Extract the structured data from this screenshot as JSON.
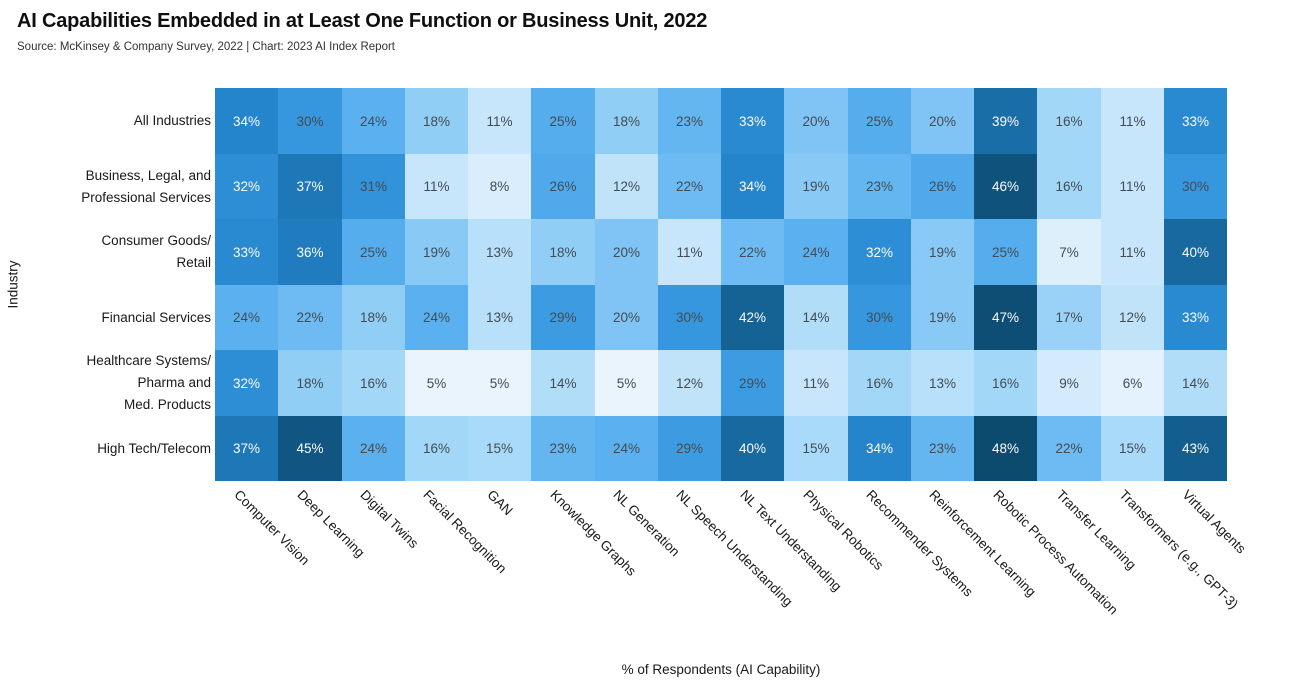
{
  "header": {
    "title": "AI Capabilities Embedded in at Least One Function or Business Unit, 2022",
    "source": "Source: McKinsey & Company Survey, 2022 | Chart: 2023 AI Index Report"
  },
  "chart_data": {
    "type": "heatmap",
    "title": "AI Capabilities Embedded in at Least One Function or Business Unit, 2022",
    "xlabel": "% of Respondents (AI Capability)",
    "ylabel": "Industry",
    "unit": "%",
    "columns": [
      "Computer Vision",
      "Deep Learning",
      "Digital Twins",
      "Facial Recognition",
      "GAN",
      "Knowledge Graphs",
      "NL Generation",
      "NL Speech Understanding",
      "NL Text Understanding",
      "Physical Robotics",
      "Recommender Systems",
      "Reinforcement Learning",
      "Robotic Process Automation",
      "Transfer Learning",
      "Transformers (e.g., GPT-3)",
      "Virtual Agents"
    ],
    "rows": [
      "All Industries",
      "Business, Legal, and Professional Services",
      "Consumer Goods/Retail",
      "Financial Services",
      "Healthcare Systems/Pharma and Med. Products",
      "High Tech/Telecom"
    ],
    "row_label_lines": [
      [
        "All Industries"
      ],
      [
        "Business, Legal, and",
        "Professional Services"
      ],
      [
        "Consumer Goods/",
        "Retail"
      ],
      [
        "Financial Services"
      ],
      [
        "Healthcare Systems/",
        "Pharma and",
        "Med. Products"
      ],
      [
        "High Tech/Telecom"
      ]
    ],
    "values": [
      [
        34,
        30,
        24,
        18,
        11,
        25,
        18,
        23,
        33,
        20,
        25,
        20,
        39,
        16,
        11,
        33
      ],
      [
        32,
        37,
        31,
        11,
        8,
        26,
        12,
        22,
        34,
        19,
        23,
        26,
        46,
        16,
        11,
        30
      ],
      [
        33,
        36,
        25,
        19,
        13,
        18,
        20,
        11,
        22,
        24,
        32,
        19,
        25,
        7,
        11,
        40
      ],
      [
        24,
        22,
        18,
        24,
        13,
        29,
        20,
        30,
        42,
        14,
        30,
        19,
        47,
        17,
        12,
        33
      ],
      [
        32,
        18,
        16,
        5,
        5,
        14,
        5,
        12,
        29,
        11,
        16,
        13,
        16,
        9,
        6,
        14
      ],
      [
        37,
        45,
        24,
        16,
        15,
        23,
        24,
        29,
        40,
        15,
        34,
        23,
        48,
        22,
        15,
        43
      ]
    ],
    "value_range": [
      5,
      48
    ],
    "color_scale": {
      "stops": [
        [
          5,
          "#eaf4fd"
        ],
        [
          11,
          "#c7e6fb"
        ],
        [
          16,
          "#a3d7f8"
        ],
        [
          20,
          "#7fc4f4"
        ],
        [
          24,
          "#5bb1ef"
        ],
        [
          28,
          "#42a0e6"
        ],
        [
          31,
          "#3292da"
        ],
        [
          34,
          "#2585cc"
        ],
        [
          37,
          "#1e78b8"
        ],
        [
          40,
          "#18699f"
        ],
        [
          44,
          "#125a89"
        ],
        [
          48,
          "#0c4a6e"
        ]
      ],
      "light_text_threshold": 32,
      "dark_text_color": "#424c55",
      "light_text_color": "#fbfdfe"
    }
  }
}
